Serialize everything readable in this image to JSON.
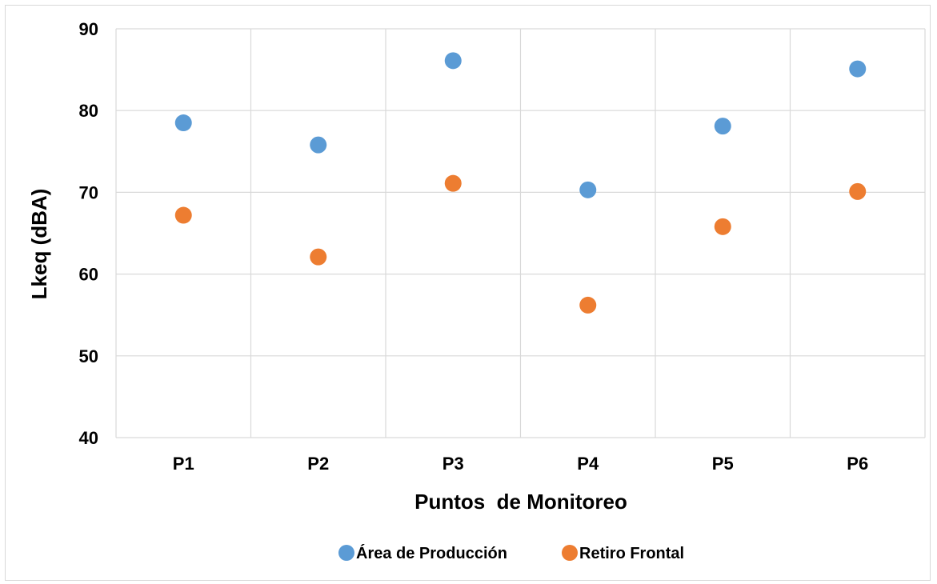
{
  "chart_data": {
    "type": "scatter",
    "categories": [
      "P1",
      "P2",
      "P3",
      "P4",
      "P5",
      "P6"
    ],
    "xlabel": "Puntos  de Monitoreo",
    "ylabel": "Lkeq (dBA)",
    "ylim": [
      40,
      90
    ],
    "yticks": [
      40,
      50,
      60,
      70,
      80,
      90
    ],
    "grid": true,
    "legend_position": "bottom",
    "series": [
      {
        "name": "Área de Producción",
        "color": "#5b9bd5",
        "values": [
          78.5,
          75.8,
          86.1,
          70.3,
          78.1,
          85.1
        ]
      },
      {
        "name": "Retiro Frontal",
        "color": "#ed7d31",
        "values": [
          67.2,
          62.1,
          71.1,
          56.2,
          65.8,
          70.1
        ]
      }
    ]
  }
}
